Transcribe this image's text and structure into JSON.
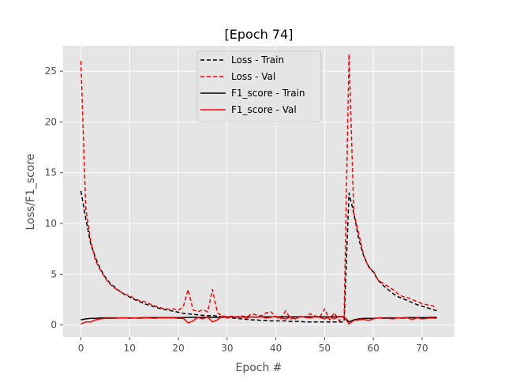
{
  "chart_data": {
    "type": "line",
    "title": "[Epoch 74]",
    "xlabel": "Epoch #",
    "ylabel": "Loss/F1_score",
    "xlim": [
      -3.65,
      76.65
    ],
    "ylim": [
      -1.2,
      27.5
    ],
    "xticks": [
      0,
      10,
      20,
      30,
      40,
      50,
      60,
      70
    ],
    "yticks": [
      0,
      5,
      10,
      15,
      20,
      25
    ],
    "grid": true,
    "legend_position": "top-center",
    "x": [
      0,
      1,
      2,
      3,
      4,
      5,
      6,
      7,
      8,
      9,
      10,
      11,
      12,
      13,
      14,
      15,
      16,
      17,
      18,
      19,
      20,
      21,
      22,
      23,
      24,
      25,
      26,
      27,
      28,
      29,
      30,
      31,
      32,
      33,
      34,
      35,
      36,
      37,
      38,
      39,
      40,
      41,
      42,
      43,
      44,
      45,
      46,
      47,
      48,
      49,
      50,
      51,
      52,
      53,
      54,
      55,
      56,
      57,
      58,
      59,
      60,
      61,
      62,
      63,
      64,
      65,
      66,
      67,
      68,
      69,
      70,
      71,
      72,
      73
    ],
    "series": [
      {
        "name": "Loss - Train",
        "color": "#000000",
        "dash": "dashed",
        "values": [
          13.2,
          10.5,
          8.0,
          6.6,
          5.5,
          4.7,
          4.1,
          3.7,
          3.3,
          3.0,
          2.75,
          2.5,
          2.3,
          2.1,
          1.95,
          1.8,
          1.65,
          1.55,
          1.45,
          1.35,
          1.25,
          1.15,
          1.1,
          1.05,
          1.0,
          0.95,
          0.9,
          0.95,
          0.85,
          0.8,
          0.75,
          0.7,
          0.65,
          0.6,
          0.55,
          0.5,
          0.5,
          0.45,
          0.45,
          0.4,
          0.4,
          0.4,
          0.4,
          0.35,
          0.35,
          0.35,
          0.3,
          0.3,
          0.3,
          0.3,
          0.3,
          0.3,
          0.3,
          0.3,
          0.3,
          13.0,
          11.0,
          8.5,
          6.8,
          5.8,
          5.2,
          4.4,
          3.9,
          3.5,
          3.1,
          2.8,
          2.6,
          2.4,
          2.2,
          2.0,
          1.85,
          1.7,
          1.55,
          1.4
        ]
      },
      {
        "name": "Loss - Val",
        "color": "#ff0000",
        "dash": "dashed",
        "values": [
          26.0,
          11.5,
          8.3,
          6.3,
          5.4,
          4.6,
          4.0,
          3.6,
          3.3,
          3.0,
          2.9,
          2.6,
          2.4,
          2.3,
          2.1,
          1.9,
          1.75,
          1.6,
          1.55,
          1.6,
          1.45,
          1.8,
          3.5,
          1.5,
          1.3,
          1.5,
          1.3,
          3.5,
          1.2,
          0.9,
          0.8,
          0.85,
          0.8,
          0.9,
          0.75,
          1.1,
          1.0,
          0.9,
          1.2,
          1.3,
          0.8,
          0.6,
          1.4,
          0.6,
          0.7,
          0.8,
          0.8,
          1.1,
          0.9,
          0.75,
          1.6,
          0.5,
          1.2,
          0.4,
          0.8,
          26.7,
          11.0,
          9.0,
          6.9,
          5.7,
          5.3,
          4.4,
          4.1,
          3.8,
          3.5,
          3.1,
          2.8,
          2.7,
          2.5,
          2.3,
          2.1,
          2.0,
          1.9,
          1.7
        ]
      },
      {
        "name": "F1_score - Train",
        "color": "#000000",
        "dash": "solid",
        "values": [
          0.5,
          0.6,
          0.65,
          0.65,
          0.7,
          0.7,
          0.7,
          0.7,
          0.7,
          0.7,
          0.7,
          0.7,
          0.7,
          0.72,
          0.72,
          0.72,
          0.72,
          0.72,
          0.72,
          0.72,
          0.72,
          0.72,
          0.75,
          0.75,
          0.75,
          0.75,
          0.75,
          0.75,
          0.75,
          0.75,
          0.78,
          0.78,
          0.78,
          0.78,
          0.78,
          0.78,
          0.78,
          0.8,
          0.8,
          0.8,
          0.8,
          0.8,
          0.8,
          0.8,
          0.8,
          0.8,
          0.8,
          0.8,
          0.8,
          0.8,
          0.8,
          0.8,
          0.8,
          0.8,
          0.8,
          0.3,
          0.5,
          0.6,
          0.65,
          0.65,
          0.65,
          0.7,
          0.7,
          0.7,
          0.7,
          0.7,
          0.7,
          0.72,
          0.72,
          0.72,
          0.72,
          0.72,
          0.75,
          0.75
        ]
      },
      {
        "name": "F1_score - Val",
        "color": "#ff0000",
        "dash": "solid",
        "values": [
          0.1,
          0.3,
          0.3,
          0.5,
          0.6,
          0.65,
          0.65,
          0.65,
          0.7,
          0.7,
          0.65,
          0.7,
          0.65,
          0.7,
          0.7,
          0.65,
          0.7,
          0.7,
          0.7,
          0.7,
          0.65,
          0.65,
          0.2,
          0.4,
          0.75,
          0.6,
          0.8,
          0.3,
          0.5,
          0.85,
          0.7,
          0.8,
          0.75,
          0.8,
          0.7,
          0.8,
          0.75,
          0.8,
          0.7,
          0.75,
          0.85,
          0.7,
          0.6,
          0.8,
          0.6,
          0.85,
          0.75,
          0.7,
          0.8,
          0.75,
          0.6,
          0.8,
          0.6,
          0.85,
          0.8,
          0.1,
          0.45,
          0.5,
          0.55,
          0.45,
          0.6,
          0.7,
          0.65,
          0.65,
          0.6,
          0.7,
          0.65,
          0.7,
          0.55,
          0.7,
          0.6,
          0.65,
          0.7,
          0.65
        ]
      }
    ]
  }
}
